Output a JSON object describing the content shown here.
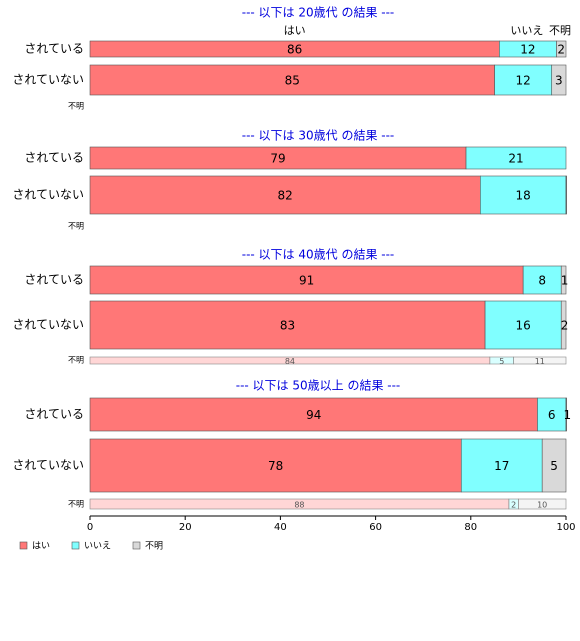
{
  "chart_data": {
    "type": "bar",
    "orientation": "horizontal",
    "stacked": "percent",
    "xlim": [
      0,
      100
    ],
    "x_ticks": [
      0,
      20,
      40,
      60,
      80,
      100
    ],
    "segment_keys": [
      "yes",
      "no",
      "unknown"
    ],
    "colors": {
      "yes": "#ff7777",
      "no": "#80ffff",
      "unknown": "#d9d9d9",
      "title": "#0000dd"
    },
    "legend": {
      "position": "bottom-left",
      "items": [
        {
          "key": "yes",
          "label": "はい"
        },
        {
          "key": "no",
          "label": "いいえ"
        },
        {
          "key": "unknown",
          "label": "不明"
        }
      ]
    },
    "header_labels": {
      "yes": "はい",
      "no": "いいえ",
      "unknown": "不明"
    },
    "panels": [
      {
        "title": "--- 以下は 20歳代 の結果 ---",
        "bars": [
          {
            "label": "されている",
            "values": {
              "yes": 86,
              "no": 12,
              "unknown": 2
            }
          },
          {
            "label": "されていない",
            "values": {
              "yes": 85,
              "no": 12,
              "unknown": 3
            }
          }
        ],
        "unknown_row": {
          "label": "不明",
          "values": null
        }
      },
      {
        "title": "--- 以下は 30歳代 の結果 ---",
        "bars": [
          {
            "label": "されている",
            "values": {
              "yes": 79,
              "no": 21,
              "unknown": 0
            }
          },
          {
            "label": "されていない",
            "values": {
              "yes": 82,
              "no": 18,
              "unknown": 0.5
            }
          }
        ],
        "unknown_row": {
          "label": "不明",
          "values": null
        }
      },
      {
        "title": "--- 以下は 40歳代 の結果 ---",
        "bars": [
          {
            "label": "されている",
            "values": {
              "yes": 91,
              "no": 8,
              "unknown": 1
            }
          },
          {
            "label": "されていない",
            "values": {
              "yes": 83,
              "no": 16,
              "unknown": 2
            }
          }
        ],
        "unknown_row": {
          "label": "不明",
          "values": {
            "yes": 84,
            "no": 5,
            "unknown": 11
          }
        }
      },
      {
        "title": "--- 以下は 50歳以上 の結果 ---",
        "bars": [
          {
            "label": "されている",
            "values": {
              "yes": 94,
              "no": 6,
              "unknown": 1
            }
          },
          {
            "label": "されていない",
            "values": {
              "yes": 78,
              "no": 17,
              "unknown": 5
            }
          }
        ],
        "unknown_row": {
          "label": "不明",
          "values": {
            "yes": 88,
            "no": 2,
            "unknown": 10
          }
        }
      }
    ]
  }
}
